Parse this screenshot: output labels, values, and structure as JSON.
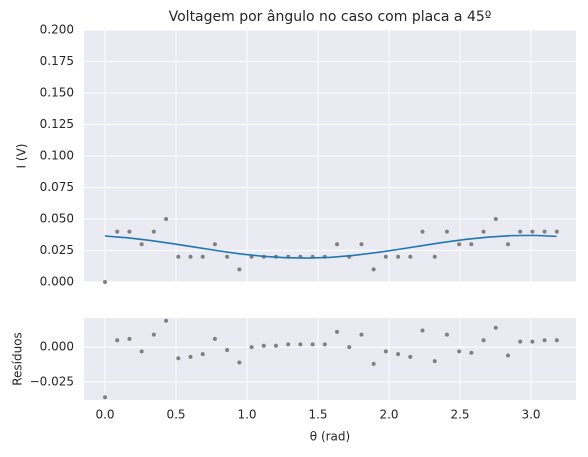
{
  "chart_data": [
    {
      "type": "scatter",
      "title": "Voltagem por ângulo no caso com placa a 45º",
      "ylabel": "I (V)",
      "background": "#eaeaf2",
      "grid": true,
      "x": [
        0,
        0.086,
        0.172,
        0.258,
        0.344,
        0.43,
        0.516,
        0.602,
        0.688,
        0.774,
        0.86,
        0.946,
        1.032,
        1.118,
        1.204,
        1.29,
        1.376,
        1.462,
        1.548,
        1.634,
        1.72,
        1.806,
        1.892,
        1.978,
        2.064,
        2.15,
        2.236,
        2.322,
        2.408,
        2.494,
        2.58,
        2.666,
        2.752,
        2.838,
        2.924,
        3.01,
        3.096,
        3.182
      ],
      "series": [
        {
          "type": "scatter",
          "color": "#808080",
          "values": [
            0,
            0.04,
            0.04,
            0.03,
            0.04,
            0.05,
            0.02,
            0.02,
            0.02,
            0.03,
            0.02,
            0.01,
            0.02,
            0.02,
            0.02,
            0.02,
            0.02,
            0.02,
            0.02,
            0.03,
            0.02,
            0.03,
            0.01,
            0.02,
            0.02,
            0.02,
            0.04,
            0.02,
            0.04,
            0.03,
            0.03,
            0.04,
            0.05,
            0.03,
            0.04,
            0.04,
            0.04,
            0.04
          ]
        },
        {
          "type": "line",
          "color": "#1f77b4",
          "x": [
            0,
            0.159,
            0.318,
            0.477,
            0.636,
            0.795,
            0.954,
            1.113,
            1.272,
            1.431,
            1.59,
            1.749,
            1.908,
            2.067,
            2.226,
            2.385,
            2.544,
            2.703,
            2.862,
            3.021,
            3.18
          ],
          "values": [
            0.0365,
            0.0351,
            0.033,
            0.0304,
            0.0276,
            0.0248,
            0.0223,
            0.0204,
            0.0193,
            0.019,
            0.0196,
            0.0211,
            0.0233,
            0.0259,
            0.0287,
            0.0315,
            0.0339,
            0.0357,
            0.0368,
            0.037,
            0.0362
          ]
        }
      ],
      "xlim": [
        -0.148,
        3.317
      ],
      "xticks": [
        0,
        0.5,
        1,
        1.5,
        2,
        2.5,
        3
      ],
      "show_xticklabels": false,
      "ylim": [
        0,
        0.2
      ],
      "yticks": [
        {
          "value": 0,
          "label": "0.000"
        },
        {
          "value": 0.025,
          "label": "0.025"
        },
        {
          "value": 0.05,
          "label": "0.050"
        },
        {
          "value": 0.075,
          "label": "0.075"
        },
        {
          "value": 0.1,
          "label": "0.100"
        },
        {
          "value": 0.125,
          "label": "0.125"
        },
        {
          "value": 0.15,
          "label": "0.150"
        },
        {
          "value": 0.175,
          "label": "0.175"
        },
        {
          "value": 0.2,
          "label": "0.200"
        }
      ]
    },
    {
      "type": "scatter",
      "xlabel": "θ (rad)",
      "ylabel": "Resíduos",
      "background": "#eaeaf2",
      "grid": true,
      "x": [
        0,
        0.086,
        0.172,
        0.258,
        0.344,
        0.43,
        0.516,
        0.602,
        0.688,
        0.774,
        0.86,
        0.946,
        1.032,
        1.118,
        1.204,
        1.29,
        1.376,
        1.462,
        1.548,
        1.634,
        1.72,
        1.806,
        1.892,
        1.978,
        2.064,
        2.15,
        2.236,
        2.322,
        2.408,
        2.494,
        2.58,
        2.666,
        2.752,
        2.838,
        2.924,
        3.01,
        3.096,
        3.182
      ],
      "series": [
        {
          "type": "scatter",
          "color": "#808080",
          "values": [
            -0.036,
            0.005,
            0.006,
            -0.003,
            0.009,
            0.019,
            -0.008,
            -0.007,
            -0.005,
            0.006,
            -0.002,
            -0.011,
            0,
            0.001,
            0.001,
            0.002,
            0.002,
            0.002,
            0.002,
            0.011,
            0,
            0.009,
            -0.012,
            -0.003,
            -0.005,
            -0.007,
            0.012,
            -0.01,
            0.009,
            -0.003,
            -0.004,
            0.005,
            0.014,
            -0.006,
            0.004,
            0.004,
            0.005,
            0.005
          ]
        }
      ],
      "xlim": [
        -0.148,
        3.317
      ],
      "xticks": [
        {
          "value": 0,
          "label": "0.0"
        },
        {
          "value": 0.5,
          "label": "0.5"
        },
        {
          "value": 1,
          "label": "1.0"
        },
        {
          "value": 1.5,
          "label": "1.5"
        },
        {
          "value": 2,
          "label": "2.0"
        },
        {
          "value": 2.5,
          "label": "2.5"
        },
        {
          "value": 3,
          "label": "3.0"
        }
      ],
      "show_xticklabels": true,
      "ylim": [
        -0.038,
        0.021
      ],
      "yticks": [
        {
          "value": -0.025,
          "label": "−0.025"
        },
        {
          "value": 0,
          "label": "0.000"
        }
      ]
    }
  ]
}
